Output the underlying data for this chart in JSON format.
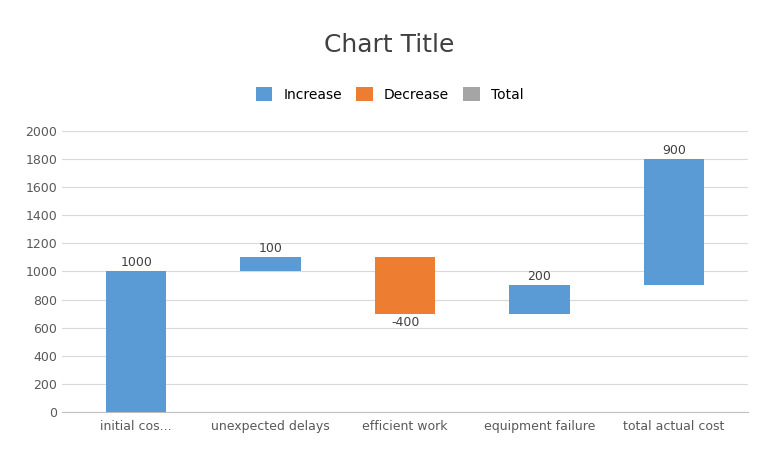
{
  "title": "Chart Title",
  "categories": [
    "initial cos...",
    "unexpected delays",
    "efficient work",
    "equipment failure",
    "total actual cost"
  ],
  "values": [
    1000,
    100,
    -400,
    200,
    900
  ],
  "bar_types": [
    "total",
    "increase",
    "decrease",
    "increase",
    "total_end"
  ],
  "colors": {
    "increase": "#5B9BD5",
    "decrease": "#ED7D31",
    "total": "#5B9BD5",
    "total_end": "#5B9BD5"
  },
  "legend_colors": {
    "Increase": "#5B9BD5",
    "Decrease": "#ED7D31",
    "Total": "#A5A5A5"
  },
  "ylim": [
    0,
    2000
  ],
  "yticks": [
    0,
    200,
    400,
    600,
    800,
    1000,
    1200,
    1400,
    1600,
    1800,
    2000
  ],
  "background_color": "#FFFFFF",
  "plot_bg_color": "#FFFFFF",
  "gridcolor": "#D9D9D9",
  "title_fontsize": 18,
  "label_fontsize": 9,
  "bar_label_fontsize": 9
}
